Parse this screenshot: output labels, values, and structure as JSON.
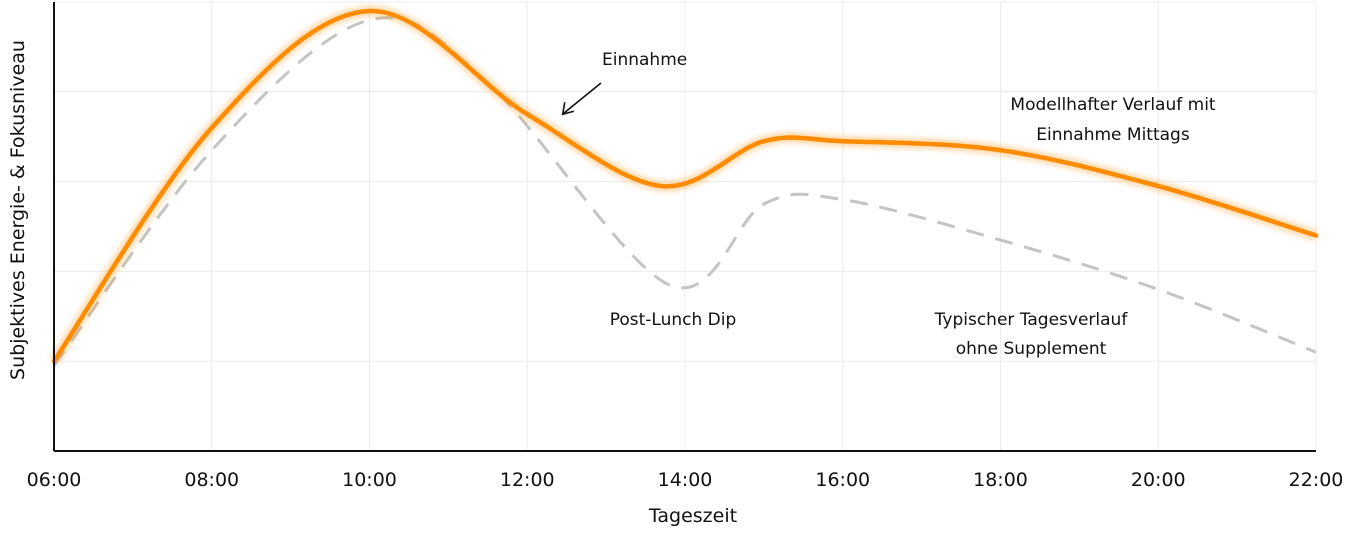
{
  "chart_data": {
    "type": "line",
    "xlabel": "Tageszeit",
    "ylabel": "Subjektives Energie- & Fokusniveau",
    "x_unit": "hour of day",
    "xlim": [
      6,
      22
    ],
    "ylim": [
      0,
      100
    ],
    "x_ticks": [
      6,
      8,
      10,
      12,
      14,
      16,
      18,
      20,
      22
    ],
    "x_tick_labels": [
      "06:00",
      "08:00",
      "10:00",
      "12:00",
      "14:00",
      "16:00",
      "18:00",
      "20:00",
      "22:00"
    ],
    "y_gridlines": [
      20,
      40,
      60,
      80,
      100
    ],
    "y_tick_labels_shown": false,
    "grid": true,
    "legend": "none",
    "series": [
      {
        "key": "supplement",
        "style": "solid",
        "color": "#ff8c00",
        "glow": true,
        "points": [
          [
            6,
            20
          ],
          [
            8,
            72
          ],
          [
            10,
            98
          ],
          [
            12,
            75
          ],
          [
            13.7,
            59
          ],
          [
            15,
            69
          ],
          [
            16,
            69
          ],
          [
            18,
            67
          ],
          [
            20,
            59
          ],
          [
            22,
            48
          ]
        ]
      },
      {
        "key": "typical",
        "style": "dashed",
        "color": "#c4c4c4",
        "points": [
          [
            6,
            19
          ],
          [
            8,
            67
          ],
          [
            10,
            96
          ],
          [
            11.5,
            82
          ],
          [
            13.8,
            37
          ],
          [
            15,
            55
          ],
          [
            16,
            56
          ],
          [
            18,
            47
          ],
          [
            20,
            36
          ],
          [
            22,
            22
          ]
        ]
      }
    ],
    "annotations": [
      {
        "key": "intake",
        "text": "Einnahme",
        "anchor_x": 12.45,
        "anchor_y": 75,
        "arrow": true
      },
      {
        "key": "dip",
        "text": "Post-Lunch Dip"
      },
      {
        "key": "model_label",
        "lines": [
          "Modellhafter Verlauf mit",
          "Einnahme Mittags"
        ]
      },
      {
        "key": "typical_label",
        "lines": [
          "Typischer Tagesverlauf",
          "ohne Supplement"
        ]
      }
    ]
  }
}
